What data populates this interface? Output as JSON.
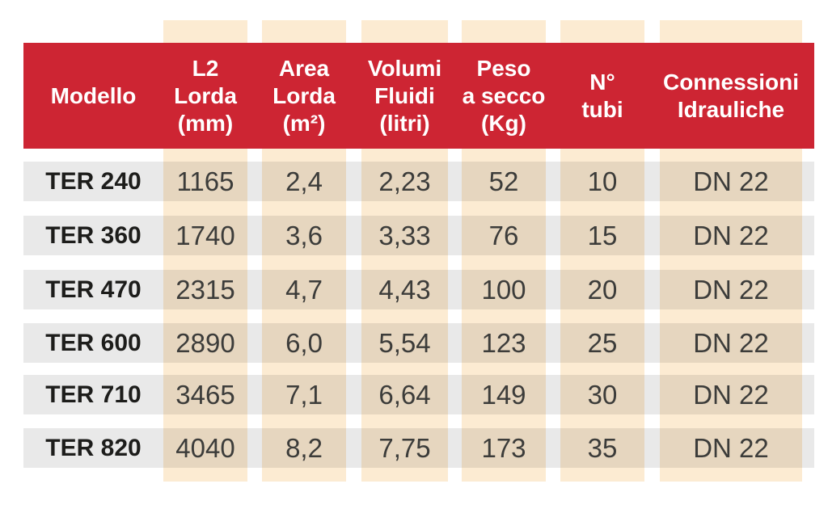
{
  "colors": {
    "page_bg": "#ffffff",
    "header_bg": "#cd2533",
    "header_text": "#ffffff",
    "column_stripe": "#fcebd2",
    "row_band": "#eaeaea",
    "row_band_on_stripe": "#e6d8c0",
    "model_text": "#1d1d1b",
    "value_text": "#3c3c3a"
  },
  "table": {
    "header": {
      "columns": [
        {
          "label": "Modello"
        },
        {
          "label": "L2\nLorda\n(mm)"
        },
        {
          "label": "Area\nLorda\n(m²)"
        },
        {
          "label": "Volumi\nFluidi\n(litri)"
        },
        {
          "label": "Peso\na secco\n(Kg)"
        },
        {
          "label": "N°\ntubi"
        },
        {
          "label": "Connessioni\nIdrauliche"
        }
      ]
    },
    "rows": [
      {
        "model": "TER 240",
        "values": [
          "1165",
          "2,4",
          "2,23",
          "52",
          "10",
          "DN 22"
        ]
      },
      {
        "model": "TER 360",
        "values": [
          "1740",
          "3,6",
          "3,33",
          "76",
          "15",
          "DN 22"
        ]
      },
      {
        "model": "TER 470",
        "values": [
          "2315",
          "4,7",
          "4,43",
          "100",
          "20",
          "DN 22"
        ]
      },
      {
        "model": "TER 600",
        "values": [
          "2890",
          "6,0",
          "5,54",
          "123",
          "25",
          "DN 22"
        ]
      },
      {
        "model": "TER 710",
        "values": [
          "3465",
          "7,1",
          "6,64",
          "149",
          "30",
          "DN 22"
        ]
      },
      {
        "model": "TER 820",
        "values": [
          "4040",
          "8,2",
          "7,75",
          "173",
          "35",
          "DN 22"
        ]
      }
    ]
  }
}
